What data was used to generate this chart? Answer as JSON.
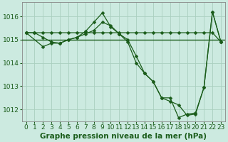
{
  "title": "Graphe pression niveau de la mer (hPa)",
  "bg_color": "#cceae0",
  "grid_color": "#aacfbf",
  "line_color": "#1a5c1a",
  "spine_color": "#888888",
  "xlim": [
    -0.5,
    23.5
  ],
  "ylim": [
    1011.5,
    1016.6
  ],
  "yticks": [
    1012,
    1013,
    1014,
    1015,
    1016
  ],
  "xticks": [
    0,
    1,
    2,
    3,
    4,
    5,
    6,
    7,
    8,
    9,
    10,
    11,
    12,
    13,
    14,
    15,
    16,
    17,
    18,
    19,
    20,
    21,
    22,
    23
  ],
  "series1_x": [
    0,
    1,
    2,
    3,
    4,
    5,
    6,
    7,
    8,
    9,
    10,
    11,
    12,
    13,
    14,
    15,
    16,
    17,
    18,
    19,
    20,
    21,
    22,
    23
  ],
  "series1_y": [
    1015.3,
    1015.3,
    1015.3,
    1015.3,
    1015.3,
    1015.3,
    1015.3,
    1015.3,
    1015.3,
    1015.3,
    1015.3,
    1015.3,
    1015.3,
    1015.3,
    1015.3,
    1015.3,
    1015.3,
    1015.3,
    1015.3,
    1015.3,
    1015.3,
    1015.3,
    1015.3,
    1014.9
  ],
  "series2_x": [
    0,
    1,
    2,
    3,
    4,
    5,
    6,
    7,
    8,
    9,
    10,
    11,
    12,
    13,
    14,
    15,
    16,
    17,
    18,
    19,
    20,
    21,
    22,
    23
  ],
  "series2_y": [
    1015.3,
    1015.3,
    1015.1,
    1014.9,
    1014.85,
    1015.0,
    1015.1,
    1015.35,
    1015.75,
    1016.15,
    1015.55,
    1015.25,
    1014.9,
    1014.0,
    1013.55,
    1013.2,
    1012.5,
    1012.5,
    1011.65,
    1011.8,
    1011.85,
    1012.95,
    1016.2,
    1014.9
  ],
  "series3_x": [
    0,
    2,
    3,
    4,
    5,
    6,
    7,
    8,
    9,
    10,
    11,
    12,
    13,
    14,
    15,
    16,
    17,
    18,
    19,
    20,
    21,
    22,
    23
  ],
  "series3_y": [
    1015.3,
    1014.7,
    1014.85,
    1014.85,
    1015.0,
    1015.1,
    1015.25,
    1015.4,
    1015.75,
    1015.6,
    1015.25,
    1015.0,
    1014.3,
    1013.55,
    1013.2,
    1012.5,
    1012.35,
    1012.2,
    1011.75,
    1011.8,
    1012.95,
    1016.2,
    1014.9
  ],
  "hline_y": 1015.0,
  "tick_fontsize": 6.5,
  "xlabel_fontsize": 7.5,
  "marker_size": 2.5,
  "line_width": 0.9
}
